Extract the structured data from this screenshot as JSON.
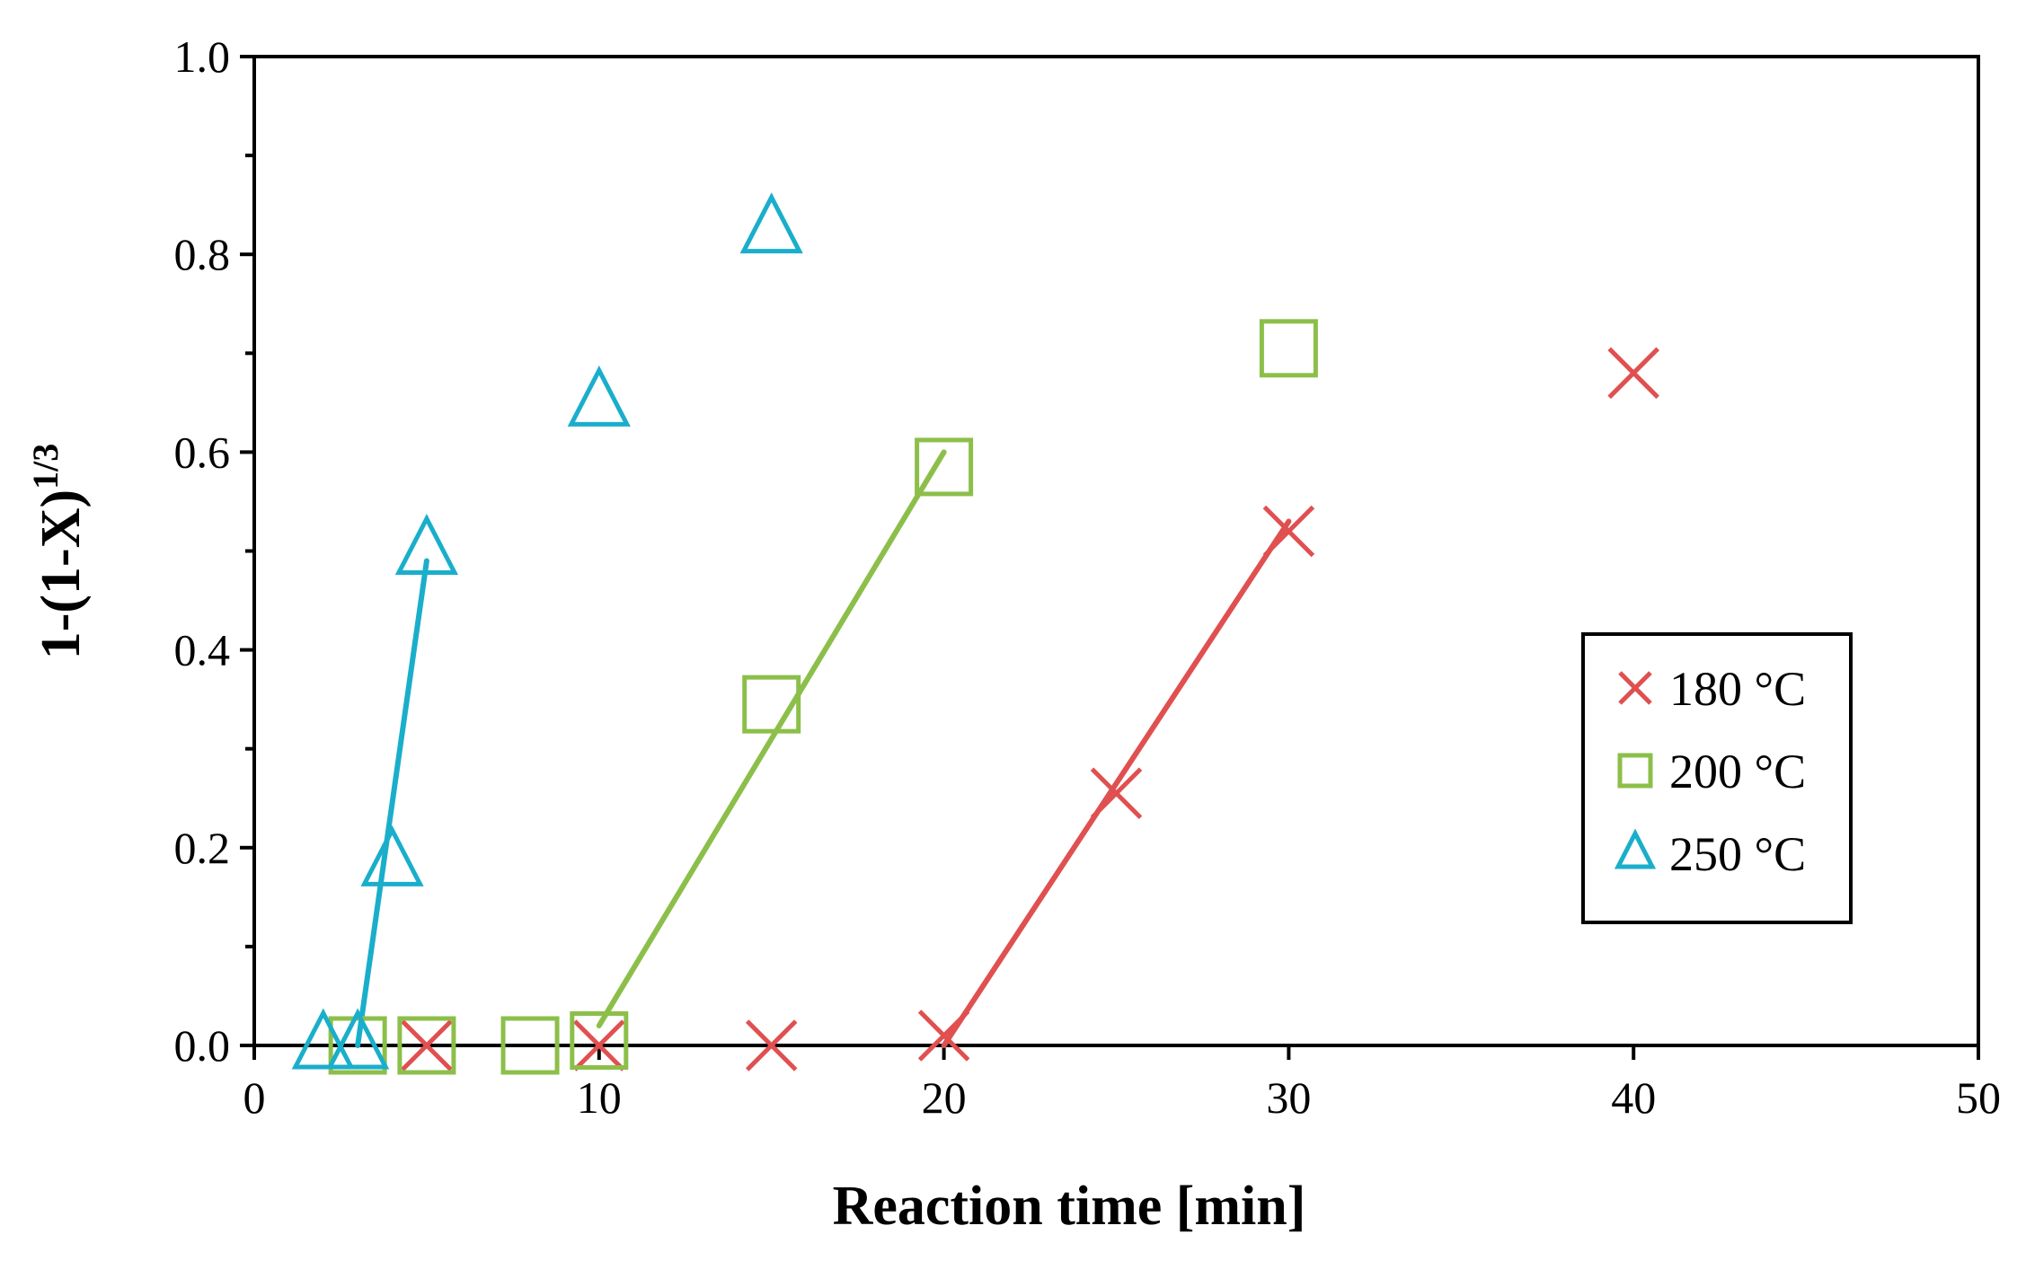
{
  "chart_data": {
    "type": "scatter",
    "title": "",
    "xlabel": "Reaction time [min]",
    "ylabel_main": "1-(1-X)",
    "ylabel_sup": "1/3",
    "xlim": [
      0,
      50
    ],
    "ylim": [
      0,
      1.0
    ],
    "x_ticks": [
      0,
      10,
      20,
      30,
      40,
      50
    ],
    "x_tick_labels": [
      "0",
      "10",
      "20",
      "30",
      "40",
      "50"
    ],
    "y_ticks": [
      0,
      0.2,
      0.4,
      0.6,
      0.8,
      1.0
    ],
    "y_tick_labels": [
      "0.0",
      "0.2",
      "0.4",
      "0.6",
      "0.8",
      "1.0"
    ],
    "y_minor_step": 0.1,
    "grid": false,
    "legend_position": "right",
    "series": [
      {
        "name": "180 °C",
        "marker": "x",
        "color": "#e05050",
        "x": [
          5,
          10,
          15,
          20,
          25,
          30,
          40
        ],
        "y": [
          0.0,
          0.0,
          0.0,
          0.01,
          0.255,
          0.52,
          0.68
        ],
        "fit": {
          "x": [
            20,
            30
          ],
          "y": [
            0.0,
            0.53
          ]
        }
      },
      {
        "name": "200 °C",
        "marker": "square",
        "color": "#8cbf4a",
        "x": [
          3,
          5,
          8,
          10,
          15,
          20,
          30
        ],
        "y": [
          0.0,
          0.0,
          0.0,
          0.005,
          0.345,
          0.585,
          0.705
        ],
        "fit": {
          "x": [
            10,
            20
          ],
          "y": [
            0.02,
            0.6
          ]
        }
      },
      {
        "name": "250 °C",
        "marker": "triangle",
        "color": "#1aaecb",
        "x": [
          2,
          3,
          4,
          5,
          10,
          15
        ],
        "y": [
          0.0,
          0.0,
          0.185,
          0.5,
          0.65,
          0.825
        ],
        "fit": {
          "x": [
            3,
            5
          ],
          "y": [
            0.0,
            0.49
          ]
        }
      }
    ]
  }
}
